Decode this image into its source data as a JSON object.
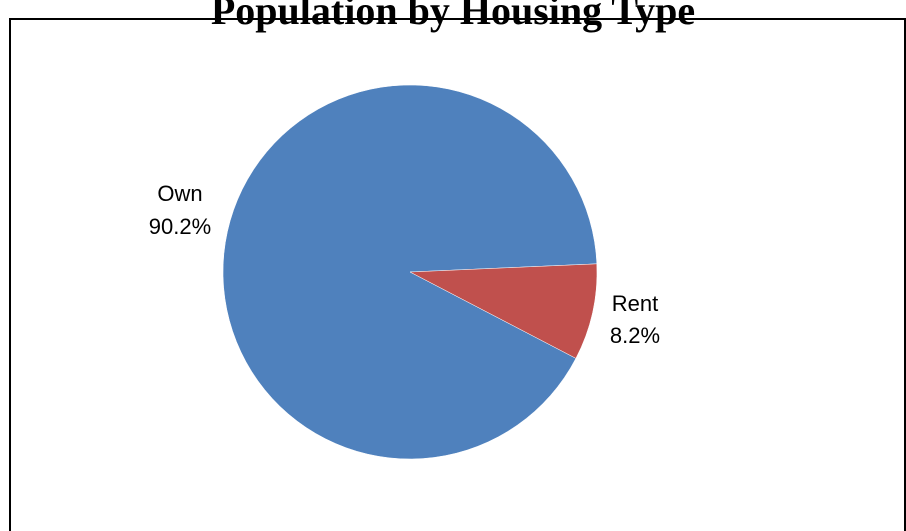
{
  "chart_data": {
    "type": "pie",
    "title": "Population by Housing Type",
    "slices": [
      {
        "label": "Own",
        "percent_label": "90.2%",
        "value": 90.2,
        "color": "#4F81BD"
      },
      {
        "label": "Rent",
        "percent_label": "8.2%",
        "value": 8.2,
        "color": "#C0504D"
      }
    ],
    "legend": "none"
  }
}
